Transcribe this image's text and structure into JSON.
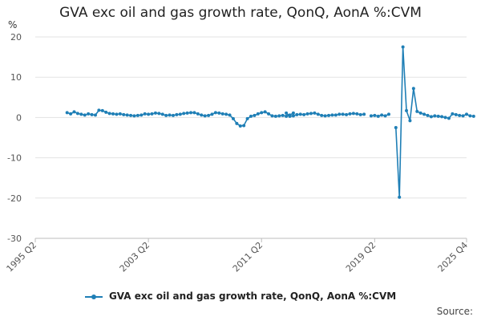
{
  "chart_data": {
    "type": "line",
    "title": "GVA exc oil and gas growth rate, QonQ, AonA %:CVM",
    "ylabel": "%",
    "ylim": [
      -30,
      20
    ],
    "yticks": [
      20,
      10,
      0,
      -10,
      -20,
      -30
    ],
    "x_tick_labels": [
      "1995 Q2",
      "2003 Q2",
      "2011 Q2",
      "2019 Q2",
      "2025 Q4"
    ],
    "x_range": [
      "1995 Q2",
      "2025 Q4"
    ],
    "grid": "horizontal",
    "legend_position": "bottom",
    "series": [
      {
        "name": "GVA exc oil and gas growth rate, QonQ, AonA %:CVM",
        "color": "#1f7fb6",
        "segments": [
          {
            "start": "1997 Q3",
            "values": [
              1.2,
              0.9,
              1.4,
              1.0,
              0.8,
              0.6,
              0.9,
              0.7,
              0.6,
              1.8,
              1.7,
              1.3,
              1.0,
              0.9,
              0.8,
              0.9,
              0.7,
              0.6,
              0.5,
              0.4,
              0.5,
              0.6,
              0.9,
              0.8,
              0.9,
              1.1,
              1.0,
              0.8,
              0.5,
              0.6,
              0.5,
              0.7,
              0.8,
              1.0,
              1.1,
              1.2,
              1.2,
              0.9,
              0.6,
              0.4,
              0.5,
              0.8,
              1.2,
              1.1,
              0.9,
              0.8,
              0.6,
              -0.3,
              -1.5,
              -2.1,
              -2.0,
              -0.3,
              0.3,
              0.5,
              0.9,
              1.2,
              1.4,
              0.9,
              0.4,
              0.3,
              0.4,
              0.5,
              0.3,
              0.6,
              1.1
            ]
          },
          {
            "start": "2013 Q1",
            "values": [
              1.1,
              0.3,
              0.4,
              0.7,
              0.8,
              0.7,
              0.9,
              1.0,
              1.1,
              0.8,
              0.5,
              0.4,
              0.5,
              0.6,
              0.6,
              0.8,
              0.8,
              0.7,
              0.9,
              1.0,
              0.9,
              0.7,
              0.8
            ]
          },
          {
            "start": "2019 Q1",
            "values": [
              0.4,
              0.5,
              0.3,
              0.6,
              0.4,
              0.8
            ]
          },
          {
            "start": "2020 Q4",
            "values": [
              -2.5,
              -19.8,
              17.5,
              1.7,
              -0.8,
              7.2,
              1.5,
              1.1,
              0.8,
              0.5,
              0.2,
              0.4,
              0.3,
              0.2,
              0.0,
              -0.2,
              0.9,
              0.7,
              0.5,
              0.4,
              0.8,
              0.4,
              0.3
            ]
          }
        ]
      }
    ]
  },
  "legend": {
    "label": "GVA exc oil and gas growth rate, QonQ, AonA %:CVM"
  },
  "source_label": "Source:"
}
